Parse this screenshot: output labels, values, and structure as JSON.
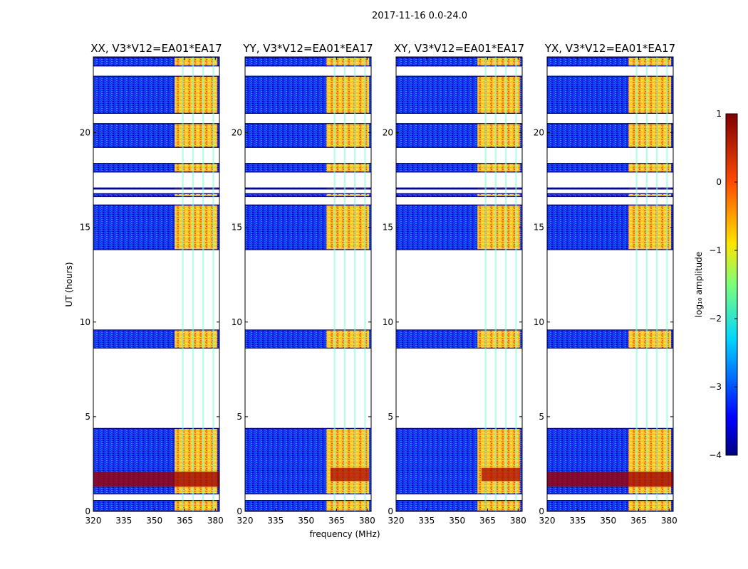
{
  "chart_data": {
    "type": "heatmap",
    "suptitle": "2017-11-16 0.0-24.0",
    "xlabel": "frequency (MHz)",
    "ylabel": "UT (hours)",
    "x_ticks": [
      "320",
      "335",
      "350",
      "365",
      "380"
    ],
    "y_ticks": [
      "0",
      "5",
      "10",
      "15",
      "20"
    ],
    "xlim": [
      320,
      382
    ],
    "ylim": [
      0,
      24
    ],
    "panels": [
      {
        "title": "XX, V3*V12=EA01*EA17",
        "show_ylabel": true,
        "show_xlabel": false
      },
      {
        "title": "YY, V3*V12=EA01*EA17",
        "show_ylabel": false,
        "show_xlabel": true
      },
      {
        "title": "XY, V3*V12=EA01*EA17",
        "show_ylabel": false,
        "show_xlabel": false
      },
      {
        "title": "YX, V3*V12=EA01*EA17",
        "show_ylabel": false,
        "show_xlabel": false
      }
    ],
    "colorbar": {
      "label": "log₁₀ amplitude",
      "min": -4,
      "max": 1,
      "ticks": [
        "1",
        "0",
        "−1",
        "−2",
        "−3",
        "−4"
      ],
      "colormap": "jet"
    },
    "data_bands_ut": [
      [
        0.0,
        0.6
      ],
      [
        0.9,
        4.4
      ],
      [
        8.6,
        9.6
      ],
      [
        13.8,
        16.2
      ],
      [
        16.6,
        16.8
      ],
      [
        17.0,
        17.1
      ],
      [
        17.9,
        18.4
      ],
      [
        19.2,
        20.5
      ],
      [
        21.0,
        23.0
      ],
      [
        23.5,
        24.0
      ]
    ],
    "rfi_band_mhz": [
      360,
      381
    ],
    "rfi_gaps_mhz": [
      364,
      369,
      374,
      379
    ]
  }
}
